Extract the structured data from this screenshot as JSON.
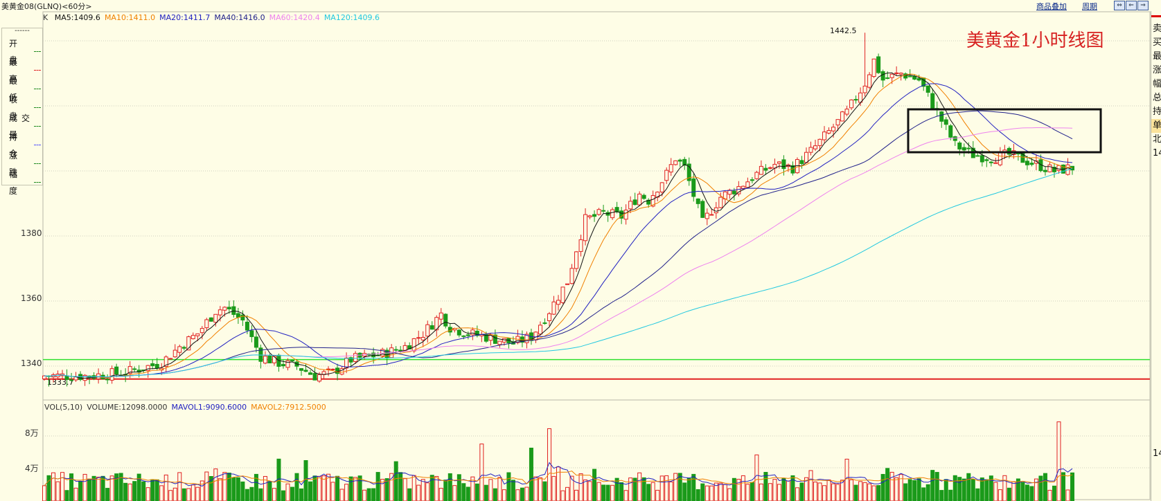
{
  "header": {
    "title": "美黄金08(GLNQ)<60分>",
    "tools": [
      "商品叠加",
      "周期"
    ],
    "window_buttons": [
      "restore-icon",
      "minimize-icon",
      "maximize-icon"
    ]
  },
  "sidebar": {
    "dash": "------",
    "items": [
      "开盘",
      "最高",
      "最低",
      "收盘",
      "成交量",
      "持仓",
      "涨跌",
      "幅度"
    ]
  },
  "right_panel": {
    "items": [
      "卖",
      "买",
      "最",
      "涨",
      "幅",
      "总",
      "持",
      "单",
      "北",
      "14",
      "14"
    ]
  },
  "price_chart": {
    "prefix": "K",
    "ma": [
      {
        "label": "MA5:1409.6",
        "color": "#111111"
      },
      {
        "label": "MA10:1411.0",
        "color": "#f08000"
      },
      {
        "label": "MA20:1411.7",
        "color": "#2020c0"
      },
      {
        "label": "MA40:1416.0",
        "color": "#20208a"
      },
      {
        "label": "MA60:1420.4",
        "color": "#ee82ee"
      },
      {
        "label": "MA120:1409.6",
        "color": "#20c8e0"
      }
    ],
    "y_ticks": [
      "1380",
      "1360",
      "1340"
    ],
    "high_label": "1442.5",
    "low_label": "1333.7",
    "annotation": "美黄金1小时线图"
  },
  "volume_chart": {
    "legend": [
      {
        "label": "VOL(5,10)",
        "color": "#333333"
      },
      {
        "label": "VOLUME:12098.0000",
        "color": "#333333"
      },
      {
        "label": "MAVOL1:9090.6000",
        "color": "#2020c0"
      },
      {
        "label": "MAVOL2:7912.5000",
        "color": "#f08000"
      }
    ],
    "y_ticks": [
      "8万",
      "4万"
    ]
  },
  "colors": {
    "up": "#e02020",
    "down": "#1a9a1a",
    "grid": "#cfcfbf",
    "support_green": "#2ee02e",
    "support_red": "#e02020"
  },
  "chart_data": {
    "type": "candlestick",
    "title": "美黄金1小时线图",
    "ylim": [
      1330,
      1445
    ],
    "y_ticks": [
      1340,
      1360,
      1380
    ],
    "high": 1442.5,
    "low": 1333.7,
    "horizontal_lines": [
      1342,
      1336
    ],
    "ma_last": {
      "MA5": 1409.6,
      "MA10": 1411.0,
      "MA20": 1411.7,
      "MA40": 1416.0,
      "MA60": 1420.4,
      "MA120": 1409.6
    },
    "volume_last": {
      "VOLUME": 12098,
      "MAVOL1": 9090.6,
      "MAVOL2": 7912.5
    },
    "close_path": [
      [
        0,
        1337
      ],
      [
        10,
        1337
      ],
      [
        18,
        1338
      ],
      [
        26,
        1341
      ],
      [
        30,
        1346
      ],
      [
        34,
        1350
      ],
      [
        38,
        1357
      ],
      [
        40,
        1358
      ],
      [
        44,
        1354
      ],
      [
        48,
        1343
      ],
      [
        52,
        1341
      ],
      [
        56,
        1340
      ],
      [
        60,
        1337
      ],
      [
        64,
        1338
      ],
      [
        68,
        1342
      ],
      [
        72,
        1343
      ],
      [
        76,
        1344
      ],
      [
        80,
        1346
      ],
      [
        84,
        1350
      ],
      [
        88,
        1356
      ],
      [
        90,
        1352
      ],
      [
        94,
        1350
      ],
      [
        98,
        1349
      ],
      [
        104,
        1347
      ],
      [
        108,
        1349
      ],
      [
        112,
        1357
      ],
      [
        116,
        1366
      ],
      [
        118,
        1376
      ],
      [
        120,
        1385
      ],
      [
        124,
        1387
      ],
      [
        128,
        1386
      ],
      [
        132,
        1393
      ],
      [
        134,
        1391
      ],
      [
        138,
        1399
      ],
      [
        140,
        1404
      ],
      [
        142,
        1401
      ],
      [
        146,
        1384
      ],
      [
        150,
        1392
      ],
      [
        154,
        1395
      ],
      [
        158,
        1399
      ],
      [
        162,
        1402
      ],
      [
        166,
        1401
      ],
      [
        170,
        1406
      ],
      [
        174,
        1412
      ],
      [
        178,
        1418
      ],
      [
        182,
        1427
      ],
      [
        184,
        1434
      ],
      [
        186,
        1428
      ],
      [
        190,
        1430
      ],
      [
        194,
        1428
      ],
      [
        198,
        1418
      ],
      [
        202,
        1408
      ],
      [
        206,
        1405
      ],
      [
        210,
        1404
      ],
      [
        214,
        1405
      ],
      [
        216,
        1404
      ],
      [
        220,
        1402
      ],
      [
        224,
        1400
      ],
      [
        228,
        1401
      ]
    ]
  }
}
